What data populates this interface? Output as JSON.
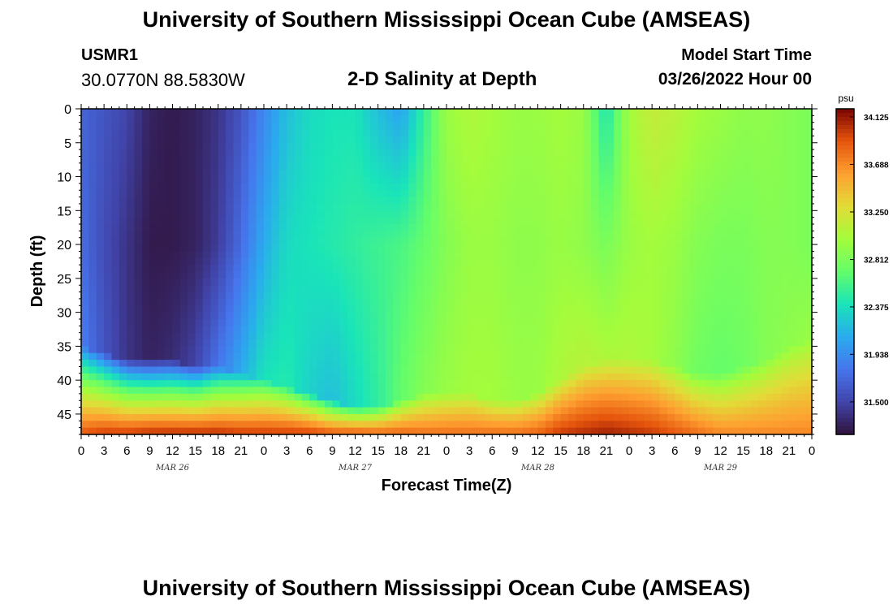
{
  "header": {
    "title": "University of Southern Mississippi Ocean Cube (AMSEAS)",
    "station_id": "USMR1",
    "station_coords": "30.0770N  88.5830W",
    "plot_title": "2-D Salinity at Depth",
    "model_start_label": "Model Start Time",
    "model_start_value": "03/26/2022 Hour 00"
  },
  "footer": {
    "title": "University of Southern Mississippi Ocean Cube (AMSEAS)"
  },
  "chart_data": {
    "type": "heatmap",
    "title": "2-D Salinity at Depth",
    "xlabel": "Forecast Time(Z)",
    "ylabel": "Depth (ft)",
    "x_unit": "forecast hour",
    "xlim": [
      0,
      96
    ],
    "ylim": [
      0,
      48
    ],
    "y_inverted": true,
    "x_ticks": [
      0,
      3,
      6,
      9,
      12,
      15,
      18,
      21,
      24,
      27,
      30,
      33,
      36,
      39,
      42,
      45,
      48,
      51,
      54,
      57,
      60,
      63,
      66,
      69,
      72,
      75,
      78,
      81,
      84,
      87,
      90,
      93,
      96
    ],
    "x_tick_labels": [
      "0",
      "3",
      "6",
      "9",
      "12",
      "15",
      "18",
      "21",
      "0",
      "3",
      "6",
      "9",
      "12",
      "15",
      "18",
      "21",
      "0",
      "3",
      "6",
      "9",
      "12",
      "15",
      "18",
      "21",
      "0",
      "3",
      "6",
      "9",
      "12",
      "15",
      "18",
      "21",
      "0"
    ],
    "day_labels": [
      {
        "hour": 12,
        "label": "MAR 26"
      },
      {
        "hour": 36,
        "label": "MAR 27"
      },
      {
        "hour": 60,
        "label": "MAR 28"
      },
      {
        "hour": 84,
        "label": "MAR 29"
      }
    ],
    "y_ticks": [
      0,
      5,
      10,
      15,
      20,
      25,
      30,
      35,
      40,
      45
    ],
    "colorbar": {
      "unit": "psu",
      "min": 31.2,
      "max": 34.2,
      "ticks": [
        31.5,
        31.938,
        32.375,
        32.812,
        33.25,
        33.688,
        34.125
      ],
      "tick_labels": [
        "31.500",
        "31.938",
        "32.375",
        "32.812",
        "33.250",
        "33.688",
        "34.125"
      ]
    },
    "salinity_profiles": [
      {
        "hour": 0,
        "surface": 31.7,
        "mid": 31.75,
        "base": 31.85,
        "pycnocline_ft": 35,
        "bottom": 33.9
      },
      {
        "hour": 3,
        "surface": 31.6,
        "mid": 31.55,
        "base": 31.6,
        "pycnocline_ft": 36,
        "bottom": 34.0
      },
      {
        "hour": 6,
        "surface": 31.5,
        "mid": 31.4,
        "base": 31.4,
        "pycnocline_ft": 37,
        "bottom": 34.0
      },
      {
        "hour": 9,
        "surface": 31.3,
        "mid": 31.25,
        "base": 31.3,
        "pycnocline_ft": 37,
        "bottom": 34.05
      },
      {
        "hour": 12,
        "surface": 31.25,
        "mid": 31.25,
        "base": 31.35,
        "pycnocline_ft": 37,
        "bottom": 34.05
      },
      {
        "hour": 15,
        "surface": 31.3,
        "mid": 31.3,
        "base": 31.5,
        "pycnocline_ft": 38,
        "bottom": 34.05
      },
      {
        "hour": 18,
        "surface": 31.4,
        "mid": 31.45,
        "base": 31.8,
        "pycnocline_ft": 38,
        "bottom": 34.05
      },
      {
        "hour": 21,
        "surface": 31.6,
        "mid": 31.75,
        "base": 32.1,
        "pycnocline_ft": 39,
        "bottom": 34.0
      },
      {
        "hour": 24,
        "surface": 31.9,
        "mid": 32.1,
        "base": 32.4,
        "pycnocline_ft": 40,
        "bottom": 34.0
      },
      {
        "hour": 27,
        "surface": 32.2,
        "mid": 32.35,
        "base": 32.45,
        "pycnocline_ft": 41,
        "bottom": 34.0
      },
      {
        "hour": 30,
        "surface": 32.35,
        "mid": 32.4,
        "base": 32.3,
        "pycnocline_ft": 42,
        "bottom": 34.0
      },
      {
        "hour": 33,
        "surface": 32.4,
        "mid": 32.45,
        "base": 32.2,
        "pycnocline_ft": 43,
        "bottom": 33.9
      },
      {
        "hour": 36,
        "surface": 32.4,
        "mid": 32.5,
        "base": 32.35,
        "pycnocline_ft": 44,
        "bottom": 33.9
      },
      {
        "hour": 39,
        "surface": 32.2,
        "mid": 32.55,
        "base": 32.5,
        "pycnocline_ft": 44,
        "bottom": 33.85
      },
      {
        "hour": 42,
        "surface": 32.05,
        "mid": 32.6,
        "base": 32.7,
        "pycnocline_ft": 43,
        "bottom": 33.85
      },
      {
        "hour": 45,
        "surface": 32.5,
        "mid": 32.7,
        "base": 32.85,
        "pycnocline_ft": 42,
        "bottom": 33.8
      },
      {
        "hour": 48,
        "surface": 32.95,
        "mid": 32.85,
        "base": 32.95,
        "pycnocline_ft": 42,
        "bottom": 33.8
      },
      {
        "hour": 51,
        "surface": 33.05,
        "mid": 32.95,
        "base": 33.0,
        "pycnocline_ft": 42,
        "bottom": 33.8
      },
      {
        "hour": 54,
        "surface": 33.0,
        "mid": 32.95,
        "base": 33.0,
        "pycnocline_ft": 43,
        "bottom": 33.8
      },
      {
        "hour": 57,
        "surface": 32.95,
        "mid": 32.9,
        "base": 32.95,
        "pycnocline_ft": 43,
        "bottom": 33.8
      },
      {
        "hour": 60,
        "surface": 32.95,
        "mid": 32.9,
        "base": 32.95,
        "pycnocline_ft": 42,
        "bottom": 33.85
      },
      {
        "hour": 63,
        "surface": 33.0,
        "mid": 32.95,
        "base": 33.05,
        "pycnocline_ft": 40,
        "bottom": 34.0
      },
      {
        "hour": 66,
        "surface": 32.95,
        "mid": 32.9,
        "base": 33.1,
        "pycnocline_ft": 38,
        "bottom": 34.05
      },
      {
        "hour": 69,
        "surface": 32.4,
        "mid": 32.8,
        "base": 33.05,
        "pycnocline_ft": 37,
        "bottom": 34.1
      },
      {
        "hour": 72,
        "surface": 33.0,
        "mid": 32.95,
        "base": 33.05,
        "pycnocline_ft": 37,
        "bottom": 34.05
      },
      {
        "hour": 75,
        "surface": 33.15,
        "mid": 33.0,
        "base": 33.0,
        "pycnocline_ft": 37,
        "bottom": 34.0
      },
      {
        "hour": 78,
        "surface": 33.1,
        "mid": 32.95,
        "base": 32.9,
        "pycnocline_ft": 38,
        "bottom": 33.9
      },
      {
        "hour": 81,
        "surface": 33.0,
        "mid": 32.85,
        "base": 32.75,
        "pycnocline_ft": 39,
        "bottom": 33.8
      },
      {
        "hour": 84,
        "surface": 32.95,
        "mid": 32.8,
        "base": 32.7,
        "pycnocline_ft": 39,
        "bottom": 33.7
      },
      {
        "hour": 87,
        "surface": 32.9,
        "mid": 32.8,
        "base": 32.75,
        "pycnocline_ft": 38,
        "bottom": 33.7
      },
      {
        "hour": 90,
        "surface": 32.9,
        "mid": 32.85,
        "base": 32.85,
        "pycnocline_ft": 37,
        "bottom": 33.7
      },
      {
        "hour": 93,
        "surface": 32.85,
        "mid": 32.85,
        "base": 32.9,
        "pycnocline_ft": 35,
        "bottom": 33.7
      },
      {
        "hour": 96,
        "surface": 32.8,
        "mid": 32.8,
        "base": 32.95,
        "pycnocline_ft": 34,
        "bottom": 33.7
      }
    ]
  }
}
